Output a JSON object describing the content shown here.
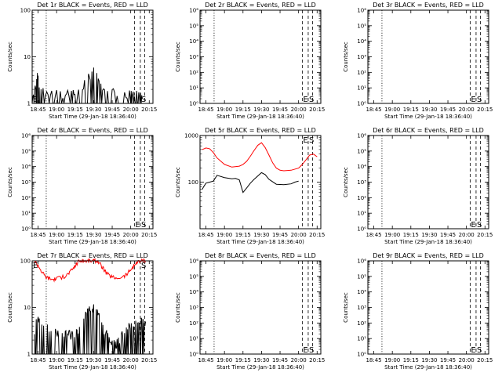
{
  "x_axis": {
    "label": "Start Time (29-Jan-18 18:36:40)",
    "tick_labels": [
      "18:45",
      "19:00",
      "19:15",
      "19:30",
      "19:45",
      "20:00",
      "20:15"
    ],
    "tick_hours": [
      18.75,
      19.0,
      19.25,
      19.5,
      19.75,
      20.0,
      20.25
    ]
  },
  "y_label": "Counts/sec",
  "marker_labels": [
    "E",
    "S"
  ],
  "colors": {
    "events": "#000000",
    "lld": "#ff0000"
  },
  "chart_data": [
    {
      "title": "Det 1r BLACK = Events, RED = LLD",
      "type": "line",
      "y_scale": "log",
      "ylim": [
        1,
        100
      ],
      "y_ticks": [
        {
          "v": 1,
          "t": "1"
        },
        {
          "v": 10,
          "t": "10"
        },
        {
          "v": 100,
          "t": "100"
        }
      ],
      "xlim": [
        18.67,
        20.3
      ],
      "vlines": [
        18.86,
        20.05,
        20.13,
        20.19
      ],
      "series": [
        {
          "color": "black",
          "style": "spiky",
          "x": [
            18.67,
            18.72,
            18.74,
            18.77,
            18.8,
            18.9,
            19.0,
            19.1,
            19.2,
            19.27,
            19.35,
            19.43,
            19.5,
            19.55,
            19.62,
            19.7,
            19.8,
            19.9,
            20.0,
            20.04,
            20.1,
            20.15
          ],
          "y": [
            1,
            2.3,
            3.8,
            2.5,
            1.8,
            1.5,
            1.6,
            1.5,
            1.7,
            1.8,
            2.2,
            3.5,
            5,
            3.5,
            2.3,
            1.8,
            1.6,
            1.5,
            1.6,
            1.5,
            1.6,
            1.5
          ]
        }
      ]
    },
    {
      "title": "Det 2r BLACK = Events, RED = LLD",
      "type": "line",
      "y_scale": "log",
      "ylim": [
        1,
        1000000
      ],
      "y_ticks": [
        {
          "v": 1,
          "t": "10⁰"
        },
        {
          "v": 10,
          "t": "10¹"
        },
        {
          "v": 100,
          "t": "10²"
        },
        {
          "v": 1000,
          "t": "10³"
        },
        {
          "v": 10000,
          "t": "10⁴"
        },
        {
          "v": 100000,
          "t": "10⁵"
        },
        {
          "v": 1000000,
          "t": "10⁶"
        }
      ],
      "xlim": [
        18.67,
        20.3
      ],
      "vlines": [
        18.86,
        20.05,
        20.13,
        20.19
      ],
      "series": []
    },
    {
      "title": "Det 3r BLACK = Events, RED = LLD",
      "type": "line",
      "y_scale": "log",
      "ylim": [
        1,
        1000000
      ],
      "y_ticks": [
        {
          "v": 1,
          "t": "10⁰"
        },
        {
          "v": 10,
          "t": "10¹"
        },
        {
          "v": 100,
          "t": "10²"
        },
        {
          "v": 1000,
          "t": "10³"
        },
        {
          "v": 10000,
          "t": "10⁴"
        },
        {
          "v": 100000,
          "t": "10⁵"
        },
        {
          "v": 1000000,
          "t": "10⁶"
        }
      ],
      "xlim": [
        18.67,
        20.3
      ],
      "vlines": [
        18.86,
        20.05,
        20.13,
        20.19
      ],
      "series": []
    },
    {
      "title": "Det 4r BLACK = Events, RED = LLD",
      "type": "line",
      "y_scale": "log",
      "ylim": [
        1,
        1000000
      ],
      "y_ticks": [
        {
          "v": 1,
          "t": "10⁰"
        },
        {
          "v": 10,
          "t": "10¹"
        },
        {
          "v": 100,
          "t": "10²"
        },
        {
          "v": 1000,
          "t": "10³"
        },
        {
          "v": 10000,
          "t": "10⁴"
        },
        {
          "v": 100000,
          "t": "10⁵"
        },
        {
          "v": 1000000,
          "t": "10⁶"
        }
      ],
      "xlim": [
        18.67,
        20.3
      ],
      "vlines": [
        18.86,
        20.05,
        20.13,
        20.19
      ],
      "series": []
    },
    {
      "title": "Det 5r BLACK = Events, RED = LLD",
      "type": "line",
      "y_scale": "log",
      "ylim": [
        10,
        1000
      ],
      "y_ticks": [
        {
          "v": 100,
          "t": "100"
        },
        {
          "v": 1000,
          "t": "1000"
        }
      ],
      "xlim": [
        18.67,
        20.3
      ],
      "vlines": [
        18.86,
        20.05,
        20.13,
        20.19
      ],
      "series": [
        {
          "color": "red",
          "style": "smooth",
          "x": [
            18.7,
            18.75,
            18.8,
            18.85,
            18.9,
            19.0,
            19.1,
            19.2,
            19.25,
            19.3,
            19.35,
            19.4,
            19.45,
            19.5,
            19.55,
            19.6,
            19.65,
            19.7,
            19.75,
            19.8,
            19.9,
            20.0,
            20.05,
            20.1,
            20.15,
            20.2,
            20.25
          ],
          "y": [
            500,
            540,
            520,
            430,
            330,
            240,
            210,
            220,
            240,
            280,
            360,
            480,
            620,
            700,
            550,
            380,
            260,
            200,
            180,
            175,
            180,
            200,
            240,
            300,
            380,
            400,
            350
          ]
        },
        {
          "color": "black",
          "style": "smooth",
          "x": [
            18.7,
            18.72,
            18.75,
            18.8,
            18.85,
            18.9,
            19.0,
            19.1,
            19.15,
            19.2,
            19.25,
            19.3,
            19.35,
            19.4,
            19.5,
            19.55,
            19.6,
            19.7,
            19.8,
            19.9,
            19.95,
            20.0
          ],
          "y": [
            70,
            80,
            95,
            100,
            105,
            140,
            125,
            118,
            120,
            112,
            60,
            75,
            95,
            115,
            160,
            145,
            115,
            90,
            88,
            92,
            100,
            105
          ]
        }
      ]
    },
    {
      "title": "Det 6r BLACK = Events, RED = LLD",
      "type": "line",
      "y_scale": "log",
      "ylim": [
        1,
        1000000
      ],
      "y_ticks": [
        {
          "v": 1,
          "t": "10⁰"
        },
        {
          "v": 10,
          "t": "10¹"
        },
        {
          "v": 100,
          "t": "10²"
        },
        {
          "v": 1000,
          "t": "10³"
        },
        {
          "v": 10000,
          "t": "10⁴"
        },
        {
          "v": 100000,
          "t": "10⁵"
        },
        {
          "v": 1000000,
          "t": "10⁶"
        }
      ],
      "xlim": [
        18.67,
        20.3
      ],
      "vlines": [
        18.86,
        20.05,
        20.13,
        20.19
      ],
      "series": []
    },
    {
      "title": "Det 7r BLACK = Events, RED = LLD",
      "type": "line",
      "y_scale": "log",
      "ylim": [
        1,
        100
      ],
      "y_ticks": [
        {
          "v": 1,
          "t": "1"
        },
        {
          "v": 10,
          "t": "10"
        },
        {
          "v": 100,
          "t": "100"
        }
      ],
      "xlim": [
        18.67,
        20.3
      ],
      "vlines": [
        18.86,
        20.05,
        20.13,
        20.19
      ],
      "series": [
        {
          "color": "red",
          "style": "noisy",
          "x": [
            18.7,
            18.75,
            18.8,
            18.85,
            18.9,
            18.95,
            19.0,
            19.1,
            19.15,
            19.2,
            19.25,
            19.3,
            19.35,
            19.4,
            19.45,
            19.5,
            19.55,
            19.6,
            19.65,
            19.7,
            19.75,
            19.8,
            19.9,
            19.95,
            20.0,
            20.05,
            20.1,
            20.15,
            20.2
          ],
          "y": [
            100,
            80,
            58,
            46,
            42,
            40,
            42,
            46,
            52,
            62,
            78,
            100,
            100,
            100,
            100,
            100,
            100,
            80,
            60,
            50,
            45,
            43,
            46,
            52,
            65,
            80,
            95,
            100,
            100
          ]
        },
        {
          "color": "black",
          "style": "spiky",
          "x": [
            18.7,
            18.75,
            18.8,
            18.85,
            18.9,
            18.95,
            19.0,
            19.05,
            19.1,
            19.15,
            19.2,
            19.25,
            19.3,
            19.35,
            19.4,
            19.45,
            19.5,
            19.55,
            19.6,
            19.65,
            19.7,
            19.75,
            19.8,
            19.85,
            19.9,
            19.95,
            20.0,
            20.05,
            20.1,
            20.15,
            20.2
          ],
          "y": [
            3,
            6,
            5,
            4,
            3.5,
            3.2,
            3,
            2.8,
            2.7,
            2.7,
            2.5,
            2.5,
            3.5,
            5,
            7,
            9,
            10,
            8,
            5,
            3,
            2.2,
            1.8,
            1.6,
            2,
            3,
            3.5,
            4,
            4.5,
            4,
            5,
            5
          ]
        }
      ]
    },
    {
      "title": "Det 8r BLACK = Events, RED = LLD",
      "type": "line",
      "y_scale": "log",
      "ylim": [
        1,
        1000000
      ],
      "y_ticks": [
        {
          "v": 1,
          "t": "10⁰"
        },
        {
          "v": 10,
          "t": "10¹"
        },
        {
          "v": 100,
          "t": "10²"
        },
        {
          "v": 1000,
          "t": "10³"
        },
        {
          "v": 10000,
          "t": "10⁴"
        },
        {
          "v": 100000,
          "t": "10⁵"
        },
        {
          "v": 1000000,
          "t": "10⁶"
        }
      ],
      "xlim": [
        18.67,
        20.3
      ],
      "vlines": [
        18.86,
        20.05,
        20.13,
        20.19
      ],
      "series": []
    },
    {
      "title": "Det 9r BLACK = Events, RED = LLD",
      "type": "line",
      "y_scale": "log",
      "ylim": [
        1,
        1000000
      ],
      "y_ticks": [
        {
          "v": 1,
          "t": "10⁰"
        },
        {
          "v": 10,
          "t": "10¹"
        },
        {
          "v": 100,
          "t": "10²"
        },
        {
          "v": 1000,
          "t": "10³"
        },
        {
          "v": 10000,
          "t": "10⁴"
        },
        {
          "v": 100000,
          "t": "10⁵"
        },
        {
          "v": 1000000,
          "t": "10⁶"
        }
      ],
      "xlim": [
        18.67,
        20.3
      ],
      "vlines": [
        18.86,
        20.05,
        20.13,
        20.19
      ],
      "series": []
    }
  ]
}
